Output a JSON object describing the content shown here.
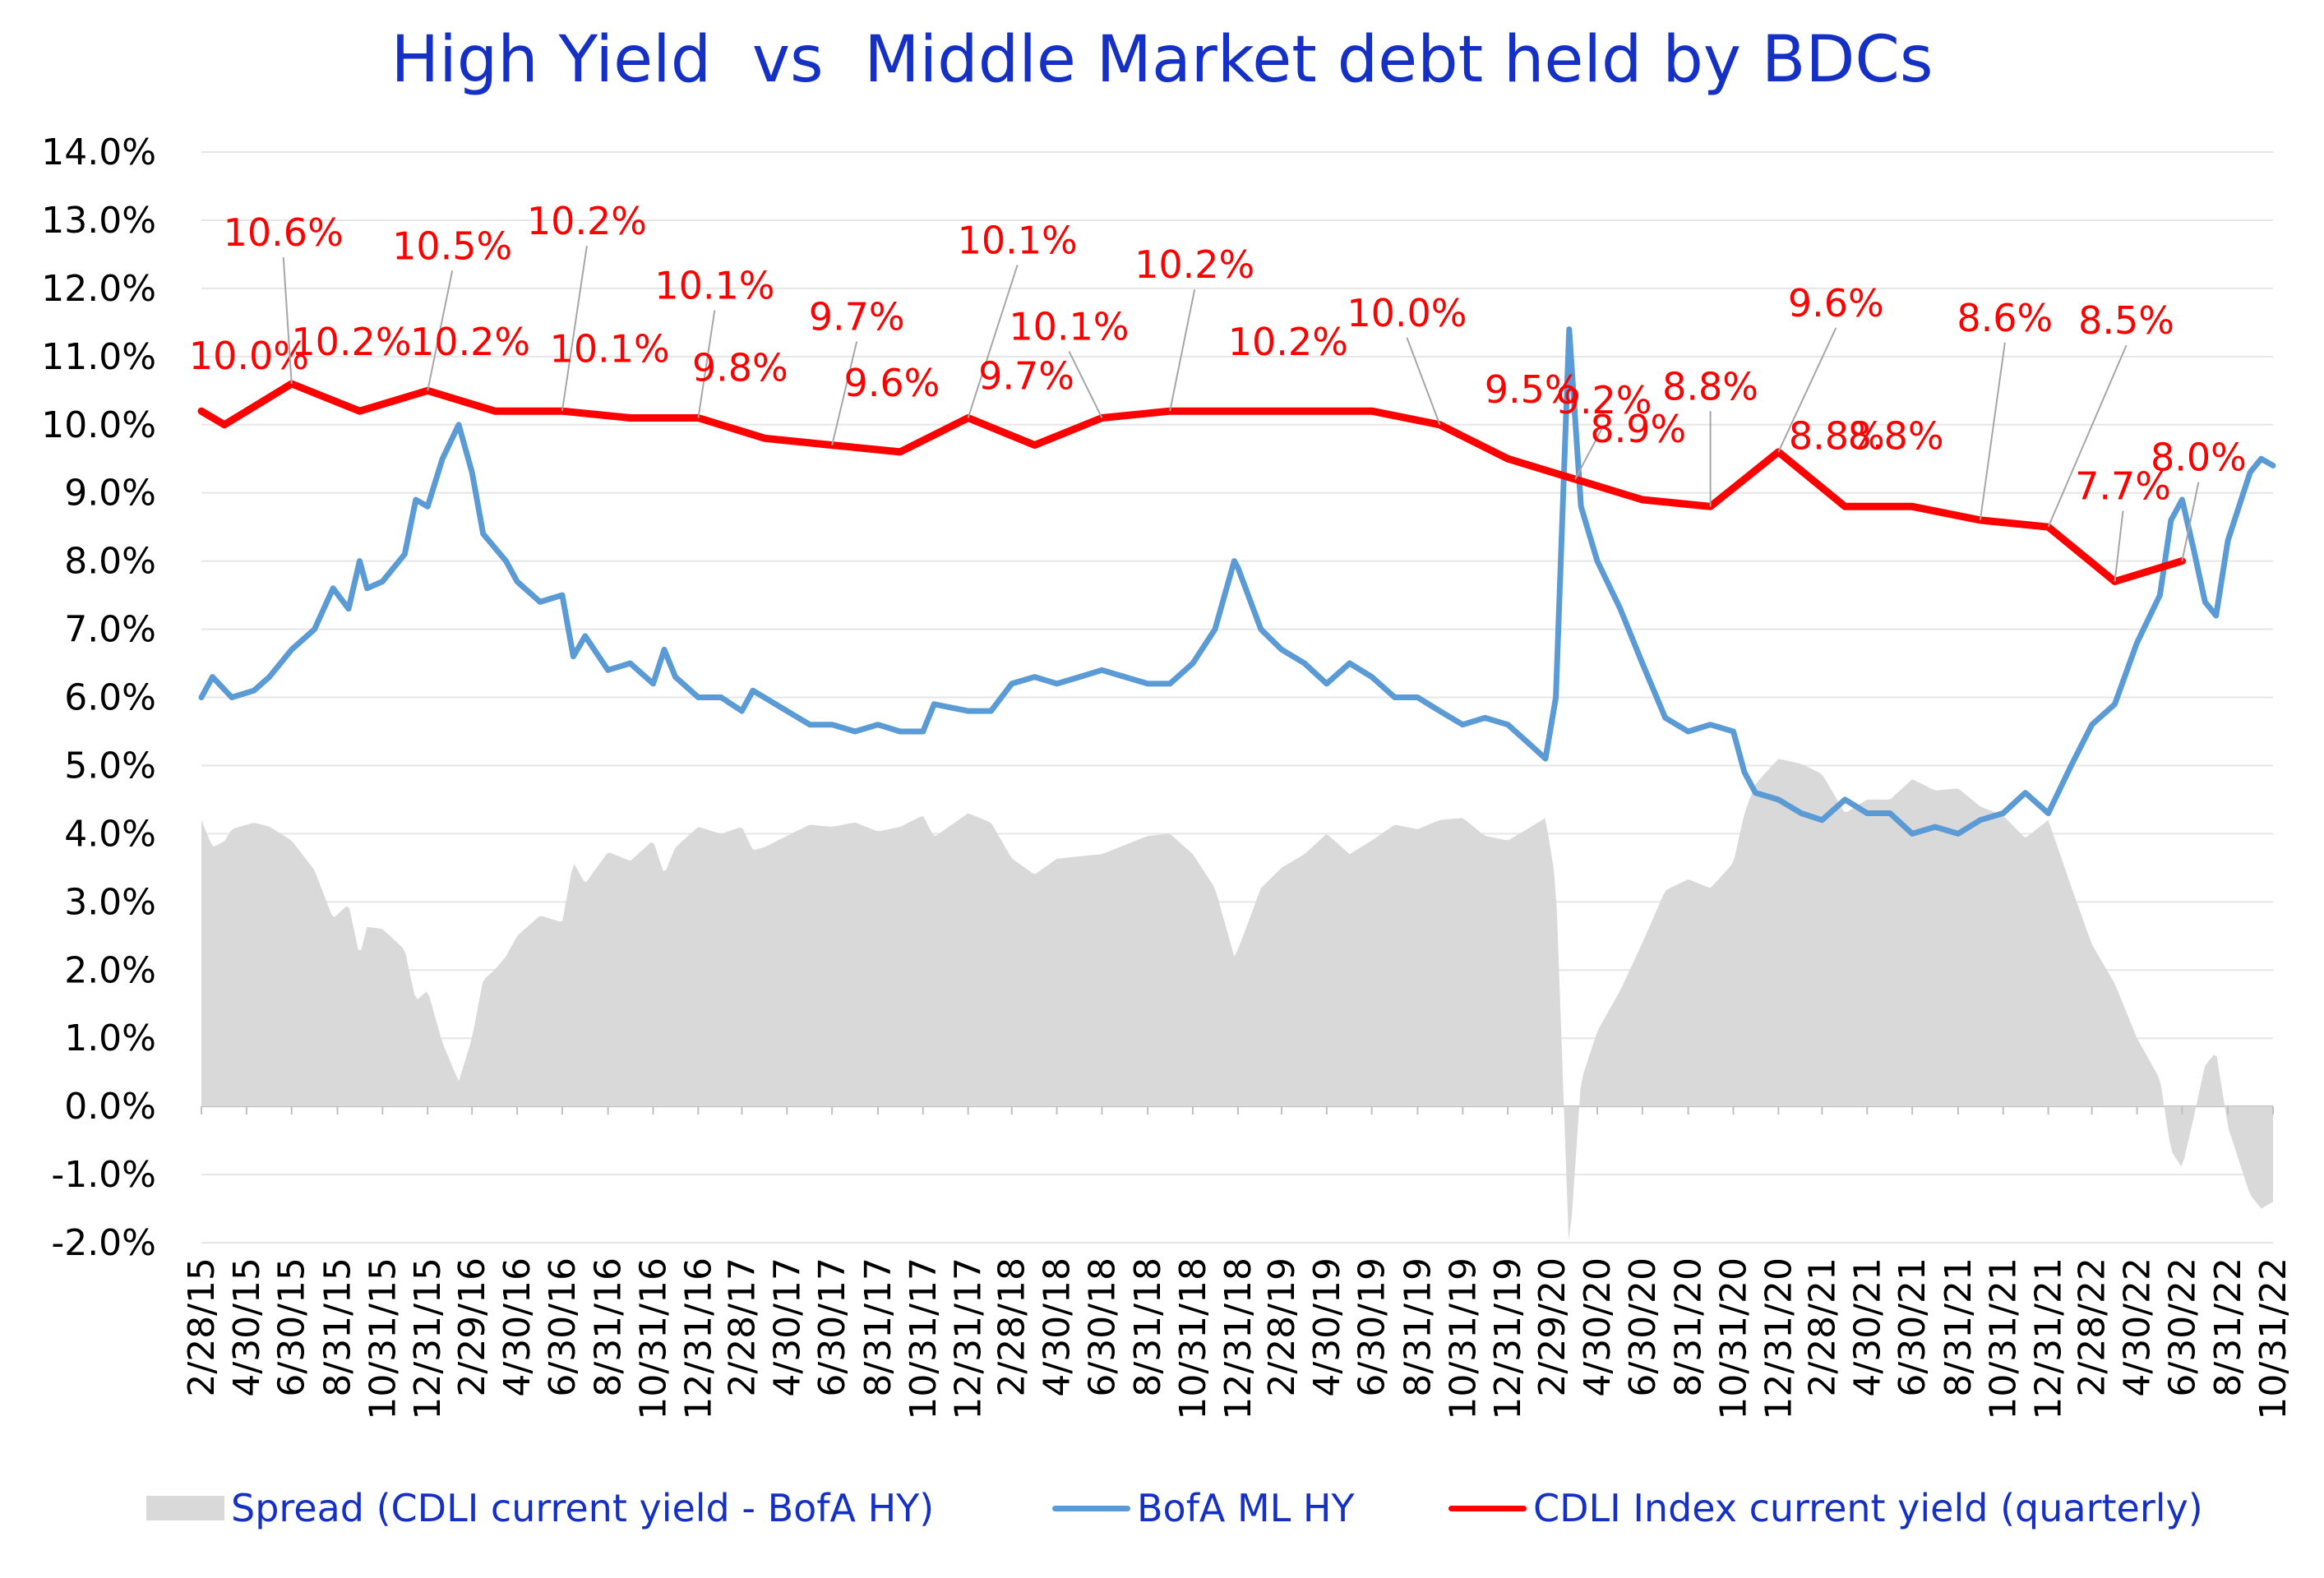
{
  "chart_data": {
    "type": "line",
    "title": "High Yield  vs  Middle Market debt held by BDCs",
    "ylim": [
      -2.0,
      14.0
    ],
    "y_ticks": [
      "14.0%",
      "13.0%",
      "12.0%",
      "11.0%",
      "10.0%",
      "9.0%",
      "8.0%",
      "7.0%",
      "6.0%",
      "5.0%",
      "4.0%",
      "3.0%",
      "2.0%",
      "1.0%",
      "0.0%",
      "-1.0%",
      "-2.0%"
    ],
    "x_range": [
      "2015-02-28",
      "2022-10-31"
    ],
    "x_ticks": [
      "2/28/15",
      "4/30/15",
      "6/30/15",
      "8/31/15",
      "10/31/15",
      "12/31/15",
      "2/29/16",
      "4/30/16",
      "6/30/16",
      "8/31/16",
      "10/31/16",
      "12/31/16",
      "2/28/17",
      "4/30/17",
      "6/30/17",
      "8/31/17",
      "10/31/17",
      "12/31/17",
      "2/28/18",
      "4/30/18",
      "6/30/18",
      "8/31/18",
      "10/31/18",
      "12/31/18",
      "2/28/19",
      "4/30/19",
      "6/30/19",
      "8/31/19",
      "10/31/19",
      "12/31/19",
      "2/29/20",
      "4/30/20",
      "6/30/20",
      "8/31/20",
      "10/31/20",
      "12/31/20",
      "2/28/21",
      "4/30/21",
      "6/30/21",
      "8/31/21",
      "10/31/21",
      "12/31/21",
      "2/28/22",
      "4/30/22",
      "6/30/22",
      "8/31/22",
      "10/31/22"
    ],
    "grid": true,
    "legend_position": "bottom",
    "series": [
      {
        "name": "Spread (CDLI current yield - BofA HY)",
        "type": "area",
        "color": "#d9d9d9",
        "derived_from": "CDLI Index current yield (quarterly) minus BofA ML HY"
      },
      {
        "name": "BofA ML HY",
        "type": "line",
        "color": "#5b9bd5",
        "points": [
          [
            "2015-02-28",
            6.0
          ],
          [
            "2015-03-15",
            6.3
          ],
          [
            "2015-04-10",
            6.0
          ],
          [
            "2015-05-10",
            6.1
          ],
          [
            "2015-05-31",
            6.3
          ],
          [
            "2015-06-30",
            6.7
          ],
          [
            "2015-07-31",
            7.0
          ],
          [
            "2015-08-25",
            7.6
          ],
          [
            "2015-09-15",
            7.3
          ],
          [
            "2015-09-30",
            8.0
          ],
          [
            "2015-10-10",
            7.6
          ],
          [
            "2015-10-31",
            7.7
          ],
          [
            "2015-11-30",
            8.1
          ],
          [
            "2015-12-15",
            8.9
          ],
          [
            "2015-12-31",
            8.8
          ],
          [
            "2016-01-20",
            9.5
          ],
          [
            "2016-02-11",
            10.0
          ],
          [
            "2016-02-29",
            9.3
          ],
          [
            "2016-03-15",
            8.4
          ],
          [
            "2016-04-15",
            8.0
          ],
          [
            "2016-04-30",
            7.7
          ],
          [
            "2016-05-31",
            7.4
          ],
          [
            "2016-06-30",
            7.5
          ],
          [
            "2016-07-15",
            6.6
          ],
          [
            "2016-07-31",
            6.9
          ],
          [
            "2016-08-31",
            6.4
          ],
          [
            "2016-09-30",
            6.5
          ],
          [
            "2016-10-31",
            6.2
          ],
          [
            "2016-11-15",
            6.7
          ],
          [
            "2016-11-30",
            6.3
          ],
          [
            "2016-12-31",
            6.0
          ],
          [
            "2017-01-31",
            6.0
          ],
          [
            "2017-02-28",
            5.8
          ],
          [
            "2017-03-15",
            6.1
          ],
          [
            "2017-04-30",
            5.8
          ],
          [
            "2017-05-31",
            5.6
          ],
          [
            "2017-06-30",
            5.6
          ],
          [
            "2017-07-31",
            5.5
          ],
          [
            "2017-08-31",
            5.6
          ],
          [
            "2017-09-30",
            5.5
          ],
          [
            "2017-10-31",
            5.5
          ],
          [
            "2017-11-15",
            5.9
          ],
          [
            "2017-12-31",
            5.8
          ],
          [
            "2018-01-31",
            5.8
          ],
          [
            "2018-02-28",
            6.2
          ],
          [
            "2018-03-31",
            6.3
          ],
          [
            "2018-04-30",
            6.2
          ],
          [
            "2018-05-31",
            6.3
          ],
          [
            "2018-06-30",
            6.4
          ],
          [
            "2018-07-31",
            6.3
          ],
          [
            "2018-08-31",
            6.2
          ],
          [
            "2018-09-30",
            6.2
          ],
          [
            "2018-10-31",
            6.5
          ],
          [
            "2018-11-30",
            7.0
          ],
          [
            "2018-12-26",
            8.0
          ],
          [
            "2018-12-31",
            7.9
          ],
          [
            "2019-01-31",
            7.0
          ],
          [
            "2019-02-28",
            6.7
          ],
          [
            "2019-03-31",
            6.5
          ],
          [
            "2019-04-30",
            6.2
          ],
          [
            "2019-05-31",
            6.5
          ],
          [
            "2019-06-30",
            6.3
          ],
          [
            "2019-07-31",
            6.0
          ],
          [
            "2019-08-31",
            6.0
          ],
          [
            "2019-09-30",
            5.8
          ],
          [
            "2019-10-31",
            5.6
          ],
          [
            "2019-11-30",
            5.7
          ],
          [
            "2019-12-31",
            5.6
          ],
          [
            "2020-01-31",
            5.3
          ],
          [
            "2020-02-20",
            5.1
          ],
          [
            "2020-03-05",
            6.0
          ],
          [
            "2020-03-23",
            11.4
          ],
          [
            "2020-04-08",
            8.8
          ],
          [
            "2020-04-30",
            8.0
          ],
          [
            "2020-05-31",
            7.3
          ],
          [
            "2020-06-30",
            6.5
          ],
          [
            "2020-07-31",
            5.7
          ],
          [
            "2020-08-31",
            5.5
          ],
          [
            "2020-09-30",
            5.6
          ],
          [
            "2020-10-31",
            5.5
          ],
          [
            "2020-11-15",
            4.9
          ],
          [
            "2020-11-30",
            4.6
          ],
          [
            "2020-12-31",
            4.5
          ],
          [
            "2021-01-31",
            4.3
          ],
          [
            "2021-02-28",
            4.2
          ],
          [
            "2021-03-31",
            4.5
          ],
          [
            "2021-04-30",
            4.3
          ],
          [
            "2021-05-31",
            4.3
          ],
          [
            "2021-06-30",
            4.0
          ],
          [
            "2021-07-31",
            4.1
          ],
          [
            "2021-08-31",
            4.0
          ],
          [
            "2021-09-30",
            4.2
          ],
          [
            "2021-10-31",
            4.3
          ],
          [
            "2021-11-30",
            4.6
          ],
          [
            "2021-12-31",
            4.3
          ],
          [
            "2022-01-31",
            5.0
          ],
          [
            "2022-02-28",
            5.6
          ],
          [
            "2022-03-31",
            5.9
          ],
          [
            "2022-04-30",
            6.8
          ],
          [
            "2022-05-31",
            7.5
          ],
          [
            "2022-06-15",
            8.6
          ],
          [
            "2022-06-30",
            8.9
          ],
          [
            "2022-07-15",
            8.2
          ],
          [
            "2022-07-31",
            7.4
          ],
          [
            "2022-08-15",
            7.2
          ],
          [
            "2022-08-31",
            8.3
          ],
          [
            "2022-09-30",
            9.3
          ],
          [
            "2022-10-15",
            9.5
          ],
          [
            "2022-10-31",
            9.4
          ]
        ]
      },
      {
        "name": "CDLI Index current yield (quarterly)",
        "type": "line",
        "color": "#ff0000",
        "points": [
          [
            "2015-02-28",
            10.2
          ],
          [
            "2015-03-31",
            10.0
          ],
          [
            "2015-06-30",
            10.6
          ],
          [
            "2015-09-30",
            10.2
          ],
          [
            "2015-12-31",
            10.5
          ],
          [
            "2016-03-31",
            10.2
          ],
          [
            "2016-06-30",
            10.2
          ],
          [
            "2016-09-30",
            10.1
          ],
          [
            "2016-12-31",
            10.1
          ],
          [
            "2017-03-31",
            9.8
          ],
          [
            "2017-06-30",
            9.7
          ],
          [
            "2017-09-30",
            9.6
          ],
          [
            "2017-12-31",
            10.1
          ],
          [
            "2018-03-31",
            9.7
          ],
          [
            "2018-06-30",
            10.1
          ],
          [
            "2018-09-30",
            10.2
          ],
          [
            "2018-12-31",
            10.2
          ],
          [
            "2019-03-31",
            10.2
          ],
          [
            "2019-06-30",
            10.2
          ],
          [
            "2019-09-30",
            10.0
          ],
          [
            "2019-12-31",
            9.5
          ],
          [
            "2020-03-31",
            9.2
          ],
          [
            "2020-06-30",
            8.9
          ],
          [
            "2020-09-30",
            8.8
          ],
          [
            "2020-12-31",
            9.6
          ],
          [
            "2021-03-31",
            8.8
          ],
          [
            "2021-06-30",
            8.8
          ],
          [
            "2021-09-30",
            8.6
          ],
          [
            "2021-12-31",
            8.5
          ],
          [
            "2022-03-31",
            7.7
          ],
          [
            "2022-06-30",
            8.0
          ]
        ]
      }
    ],
    "annotations": [
      {
        "text": "10.0%",
        "date": "2015-03-31",
        "value": 10.0
      },
      {
        "text": "10.6%",
        "date": "2015-06-30",
        "value": 10.6
      },
      {
        "text": "10.2%",
        "date": "2015-09-30",
        "value": 10.2
      },
      {
        "text": "10.5%",
        "date": "2015-12-31",
        "value": 10.5
      },
      {
        "text": "10.2%",
        "date": "2016-03-31",
        "value": 10.2
      },
      {
        "text": "10.2%",
        "date": "2016-06-30",
        "value": 10.2
      },
      {
        "text": "10.1%",
        "date": "2016-09-30",
        "value": 10.1
      },
      {
        "text": "10.1%",
        "date": "2016-12-31",
        "value": 10.1
      },
      {
        "text": "9.8%",
        "date": "2017-03-31",
        "value": 9.8
      },
      {
        "text": "9.7%",
        "date": "2017-06-30",
        "value": 9.7
      },
      {
        "text": "9.6%",
        "date": "2017-09-30",
        "value": 9.6
      },
      {
        "text": "10.1%",
        "date": "2017-12-31",
        "value": 10.1
      },
      {
        "text": "9.7%",
        "date": "2018-03-31",
        "value": 9.7
      },
      {
        "text": "10.1%",
        "date": "2018-06-30",
        "value": 10.1
      },
      {
        "text": "10.2%",
        "date": "2018-09-30",
        "value": 10.2
      },
      {
        "text": "10.2%",
        "date": "2019-03-31",
        "value": 10.2
      },
      {
        "text": "10.0%",
        "date": "2019-09-30",
        "value": 10.0
      },
      {
        "text": "9.5%",
        "date": "2019-12-31",
        "value": 9.5
      },
      {
        "text": "9.2%",
        "date": "2020-03-31",
        "value": 9.2
      },
      {
        "text": "8.9%",
        "date": "2020-06-30",
        "value": 8.9
      },
      {
        "text": "8.8%",
        "date": "2020-09-30",
        "value": 8.8
      },
      {
        "text": "9.6%",
        "date": "2020-12-31",
        "value": 9.6
      },
      {
        "text": "8.8%",
        "date": "2021-03-31",
        "value": 8.8
      },
      {
        "text": "8.8%",
        "date": "2021-06-30",
        "value": 8.8
      },
      {
        "text": "8.6%",
        "date": "2021-09-30",
        "value": 8.6
      },
      {
        "text": "8.5%",
        "date": "2021-12-31",
        "value": 8.5
      },
      {
        "text": "7.7%",
        "date": "2022-03-31",
        "value": 7.7
      },
      {
        "text": "8.0%",
        "date": "2022-06-30",
        "value": 8.0
      }
    ]
  },
  "legend": {
    "spread": "Spread (CDLI current yield - BofA HY)",
    "hy": "BofA ML HY",
    "cdli": "CDLI Index current yield (quarterly)"
  }
}
